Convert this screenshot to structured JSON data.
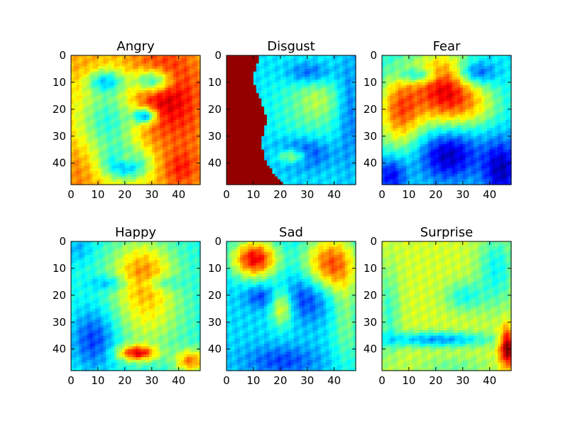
{
  "chart_data": {
    "type": "heatmap",
    "colormap": "jet",
    "grid": false,
    "panels": [
      {
        "title": "Angry",
        "xlim": [
          0,
          48
        ],
        "ylim": [
          48,
          0
        ],
        "xticks": [
          0,
          10,
          20,
          30,
          40
        ],
        "yticks": [
          0,
          10,
          20,
          30,
          40
        ],
        "base": 0.68,
        "blobs": [
          {
            "x": 34,
            "y": 14,
            "sx": 9,
            "sy": 12,
            "a": 0.25
          },
          {
            "x": 2,
            "y": 42,
            "sx": 6,
            "sy": 8,
            "a": 0.08
          },
          {
            "x": 6,
            "y": 6,
            "sx": 5,
            "sy": 5,
            "a": 0.06
          },
          {
            "x": 44,
            "y": 30,
            "sx": 4,
            "sy": 10,
            "a": 0.04
          },
          {
            "x": 14,
            "y": 24,
            "sx": 8,
            "sy": 10,
            "a": -0.28
          },
          {
            "x": 20,
            "y": 40,
            "sx": 6,
            "sy": 4,
            "a": -0.38
          },
          {
            "x": 12,
            "y": 9,
            "sx": 5,
            "sy": 3,
            "a": -0.3
          },
          {
            "x": 30,
            "y": 9,
            "sx": 5,
            "sy": 3,
            "a": -0.42
          },
          {
            "x": 27,
            "y": 22,
            "sx": 3,
            "sy": 2,
            "a": -0.45
          },
          {
            "x": 20,
            "y": 38,
            "sx": 3,
            "sy": 2,
            "a": 0.2
          },
          {
            "x": 40,
            "y": 42,
            "sx": 5,
            "sy": 5,
            "a": 0.15
          }
        ]
      },
      {
        "title": "Disgust",
        "xlim": [
          0,
          48
        ],
        "ylim": [
          48,
          0
        ],
        "xticks": [
          0,
          10,
          20,
          30,
          40
        ],
        "yticks": [
          0,
          10,
          20,
          30,
          40
        ],
        "base": 0.34,
        "leftDark": true,
        "blobs": [
          {
            "x": 30,
            "y": 18,
            "sx": 10,
            "sy": 12,
            "a": 0.12
          },
          {
            "x": 34,
            "y": 16,
            "sx": 5,
            "sy": 5,
            "a": 0.1
          },
          {
            "x": 28,
            "y": 36,
            "sx": 7,
            "sy": 4,
            "a": -0.22
          },
          {
            "x": 30,
            "y": 6,
            "sx": 6,
            "sy": 3,
            "a": -0.18
          },
          {
            "x": 45,
            "y": 20,
            "sx": 3,
            "sy": 14,
            "a": -0.12
          },
          {
            "x": 24,
            "y": 37,
            "sx": 4,
            "sy": 2,
            "a": 0.3
          }
        ]
      },
      {
        "title": "Fear",
        "xlim": [
          0,
          48
        ],
        "ylim": [
          48,
          0
        ],
        "xticks": [
          0,
          10,
          20,
          30,
          40
        ],
        "yticks": [
          0,
          10,
          20,
          30,
          40
        ],
        "base": 0.36,
        "blobs": [
          {
            "x": 22,
            "y": 12,
            "sx": 8,
            "sy": 10,
            "a": 0.5
          },
          {
            "x": 6,
            "y": 20,
            "sx": 6,
            "sy": 10,
            "a": 0.4
          },
          {
            "x": 34,
            "y": 18,
            "sx": 7,
            "sy": 6,
            "a": 0.2
          },
          {
            "x": 13,
            "y": 7,
            "sx": 5,
            "sy": 2,
            "a": -0.25
          },
          {
            "x": 34,
            "y": 6,
            "sx": 5,
            "sy": 3,
            "a": -0.25
          },
          {
            "x": 24,
            "y": 36,
            "sx": 8,
            "sy": 7,
            "a": -0.32
          },
          {
            "x": 44,
            "y": 42,
            "sx": 5,
            "sy": 8,
            "a": -0.3
          },
          {
            "x": 3,
            "y": 44,
            "sx": 4,
            "sy": 5,
            "a": -0.25
          }
        ]
      },
      {
        "title": "Happy",
        "xlim": [
          0,
          48
        ],
        "ylim": [
          48,
          0
        ],
        "xticks": [
          0,
          10,
          20,
          30,
          40
        ],
        "yticks": [
          0,
          10,
          20,
          30,
          40
        ],
        "base": 0.4,
        "blobs": [
          {
            "x": 26,
            "y": 10,
            "sx": 8,
            "sy": 8,
            "a": 0.28
          },
          {
            "x": 28,
            "y": 26,
            "sx": 9,
            "sy": 10,
            "a": 0.2
          },
          {
            "x": 8,
            "y": 36,
            "sx": 6,
            "sy": 8,
            "a": -0.22
          },
          {
            "x": 14,
            "y": 15,
            "sx": 5,
            "sy": 2,
            "a": -0.15
          },
          {
            "x": 33,
            "y": 15,
            "sx": 5,
            "sy": 2,
            "a": -0.15
          },
          {
            "x": 24,
            "y": 41,
            "sx": 5,
            "sy": 2,
            "a": 0.45
          },
          {
            "x": 44,
            "y": 44,
            "sx": 4,
            "sy": 3,
            "a": 0.35
          },
          {
            "x": 2,
            "y": 2,
            "sx": 4,
            "sy": 4,
            "a": -0.1
          }
        ]
      },
      {
        "title": "Sad",
        "xlim": [
          0,
          48
        ],
        "ylim": [
          48,
          0
        ],
        "xticks": [
          0,
          10,
          20,
          30,
          40
        ],
        "yticks": [
          0,
          10,
          20,
          30,
          40
        ],
        "base": 0.34,
        "blobs": [
          {
            "x": 10,
            "y": 6,
            "sx": 6,
            "sy": 5,
            "a": 0.55
          },
          {
            "x": 38,
            "y": 8,
            "sx": 7,
            "sy": 8,
            "a": 0.45
          },
          {
            "x": 44,
            "y": 28,
            "sx": 4,
            "sy": 14,
            "a": 0.15
          },
          {
            "x": 20,
            "y": 24,
            "sx": 3,
            "sy": 5,
            "a": 0.3
          },
          {
            "x": 30,
            "y": 20,
            "sx": 7,
            "sy": 6,
            "a": -0.2
          },
          {
            "x": 12,
            "y": 20,
            "sx": 4,
            "sy": 3,
            "a": -0.15
          },
          {
            "x": 20,
            "y": 44,
            "sx": 10,
            "sy": 4,
            "a": -0.15
          }
        ]
      },
      {
        "title": "Surprise",
        "xlim": [
          0,
          48
        ],
        "ylim": [
          48,
          0
        ],
        "xticks": [
          0,
          10,
          20,
          30,
          40
        ],
        "yticks": [
          0,
          10,
          20,
          30,
          40
        ],
        "base": 0.58,
        "blobs": [
          {
            "x": 42,
            "y": 10,
            "sx": 5,
            "sy": 10,
            "a": -0.2
          },
          {
            "x": 2,
            "y": 26,
            "sx": 3,
            "sy": 12,
            "a": -0.15
          },
          {
            "x": 20,
            "y": 36,
            "sx": 14,
            "sy": 2,
            "a": -0.3
          },
          {
            "x": 30,
            "y": 20,
            "sx": 5,
            "sy": 4,
            "a": -0.18
          },
          {
            "x": 46,
            "y": 39,
            "sx": 2,
            "sy": 5,
            "a": 0.45
          },
          {
            "x": 26,
            "y": 46,
            "sx": 10,
            "sy": 3,
            "a": -0.1
          }
        ]
      }
    ]
  }
}
